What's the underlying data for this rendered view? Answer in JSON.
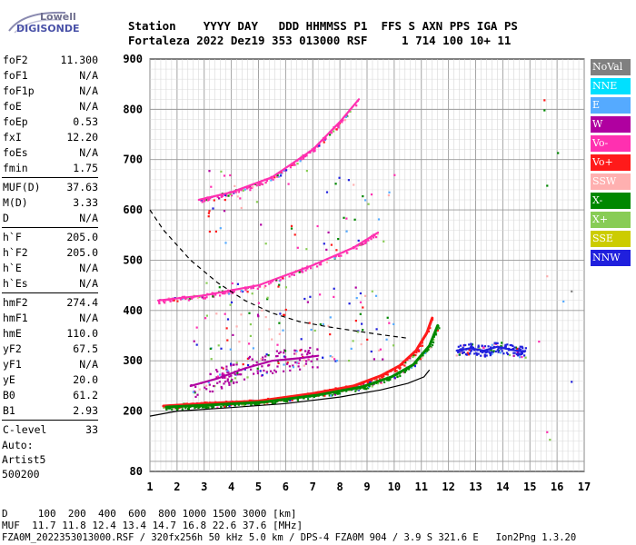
{
  "logo": {
    "line1": "Lowell",
    "line2": "DIGISONDE"
  },
  "header": {
    "line1": "Station    YYYY DAY   DDD HHMMSS P1  FFS S AXN PPS IGA PS",
    "line2": "Fortaleza 2022 Dez19 353 013000 RSF     1 714 100 10+ 11"
  },
  "params": {
    "group1": [
      {
        "label": "foF2",
        "value": "11.300"
      },
      {
        "label": "foF1",
        "value": "N/A"
      },
      {
        "label": "foF1p",
        "value": "N/A"
      },
      {
        "label": "foE",
        "value": "N/A"
      },
      {
        "label": "foEp",
        "value": "0.53"
      },
      {
        "label": "fxI",
        "value": "12.20"
      },
      {
        "label": "foEs",
        "value": "N/A"
      },
      {
        "label": "fmin",
        "value": "1.75"
      }
    ],
    "group2": [
      {
        "label": "MUF(D)",
        "value": "37.63"
      },
      {
        "label": "M(D)",
        "value": "3.33"
      },
      {
        "label": "D",
        "value": "N/A"
      }
    ],
    "group3": [
      {
        "label": "h`F",
        "value": "205.0"
      },
      {
        "label": "h`F2",
        "value": "205.0"
      },
      {
        "label": "h`E",
        "value": "N/A"
      },
      {
        "label": "h`Es",
        "value": "N/A"
      }
    ],
    "group4": [
      {
        "label": "hmF2",
        "value": "274.4"
      },
      {
        "label": "hmF1",
        "value": "N/A"
      },
      {
        "label": "hmE",
        "value": "110.0"
      },
      {
        "label": "yF2",
        "value": "67.5"
      },
      {
        "label": "yF1",
        "value": "N/A"
      },
      {
        "label": "yE",
        "value": "20.0"
      },
      {
        "label": "B0",
        "value": "61.2"
      },
      {
        "label": "B1",
        "value": "2.93"
      }
    ],
    "group5": [
      {
        "label": "C-level",
        "value": "33"
      }
    ]
  },
  "auto": {
    "line1": "Auto:",
    "line2": "Artist5",
    "line3": "500200"
  },
  "legend": [
    {
      "label": "NoVal",
      "color": "#808080"
    },
    {
      "label": "NNE",
      "color": "#00e0ff"
    },
    {
      "label": "E",
      "color": "#55aaff"
    },
    {
      "label": "W",
      "color": "#b000a0"
    },
    {
      "label": "Vo-",
      "color": "#ff30b0"
    },
    {
      "label": "Vo+",
      "color": "#ff1a1a"
    },
    {
      "label": "SSW",
      "color": "#ffb0b0"
    },
    {
      "label": "X-",
      "color": "#008800"
    },
    {
      "label": "X+",
      "color": "#88cc55"
    },
    {
      "label": "SSE",
      "color": "#cccc00"
    },
    {
      "label": "NNW",
      "color": "#2020dd"
    }
  ],
  "footer": {
    "line1": "D     100  200  400  600  800 1000 1500 3000 [km]",
    "line2": "MUF  11.7 11.8 12.4 13.4 14.7 16.8 22.6 37.6 [MHz]",
    "line3": "FZA0M_2022353013000.RSF / 320fx256h 50 kHz 5.0 km / DPS-4 FZA0M 904 / 3.9 S 321.6 E   Ion2Png 1.3.20"
  },
  "chart_data": {
    "type": "scatter",
    "xlim": [
      1,
      17
    ],
    "ylim": [
      80,
      900
    ],
    "x_ticks": [
      1,
      2,
      3,
      4,
      5,
      6,
      7,
      8,
      9,
      10,
      11,
      12,
      13,
      14,
      15,
      16,
      17
    ],
    "y_ticks": [
      80,
      200,
      300,
      400,
      500,
      600,
      700,
      800,
      900
    ],
    "grid": true,
    "traces": [
      {
        "name": "F2 O-mode trace (Vo+)",
        "color": "#ff1a1a",
        "x": [
          1.5,
          3,
          5,
          7,
          8.5,
          9.5,
          10.2,
          10.8,
          11.2,
          11.4
        ],
        "y": [
          210,
          215,
          220,
          235,
          250,
          270,
          290,
          320,
          355,
          385
        ]
      },
      {
        "name": "F2 X-mode trace (X-)",
        "color": "#008800",
        "x": [
          1.6,
          3.2,
          5.2,
          7.2,
          8.8,
          9.9,
          10.7,
          11.3,
          11.6
        ],
        "y": [
          208,
          212,
          218,
          232,
          248,
          268,
          292,
          330,
          370
        ]
      },
      {
        "name": "oblique spread (W)",
        "color": "#b000a0",
        "x": [
          2.5,
          3.5,
          4.5,
          5.5,
          6.5,
          7.2
        ],
        "y": [
          250,
          265,
          285,
          300,
          305,
          310
        ]
      },
      {
        "name": "second hop (Vo-)",
        "color": "#ff30b0",
        "x": [
          1.3,
          3,
          5,
          7,
          8.5,
          9.4
        ],
        "y": [
          420,
          430,
          450,
          490,
          525,
          555
        ]
      },
      {
        "name": "third hop (Vo-)",
        "color": "#ff30b0",
        "x": [
          2.8,
          4,
          5.5,
          7,
          8,
          8.7
        ],
        "y": [
          620,
          635,
          665,
          720,
          775,
          820
        ]
      },
      {
        "name": "NNW echoes",
        "color": "#2020dd",
        "x": [
          12.3,
          12.8,
          13.3,
          13.8,
          14.3,
          14.8
        ],
        "y": [
          320,
          325,
          320,
          328,
          322,
          318
        ]
      }
    ],
    "profile_curves": [
      {
        "name": "electron density profile",
        "style": "solid",
        "x": [
          1,
          2,
          4,
          6,
          8,
          9.5,
          10.5,
          11.1,
          11.3
        ],
        "y": [
          190,
          200,
          207,
          215,
          228,
          242,
          255,
          268,
          282
        ]
      },
      {
        "name": "MUF curve",
        "style": "dashed",
        "x": [
          1,
          1.5,
          2.5,
          3.5,
          4.5,
          5.5,
          6.5,
          7.5,
          8.5,
          9.5,
          10.5
        ],
        "y": [
          600,
          560,
          500,
          455,
          420,
          395,
          378,
          368,
          360,
          352,
          345
        ]
      }
    ]
  }
}
